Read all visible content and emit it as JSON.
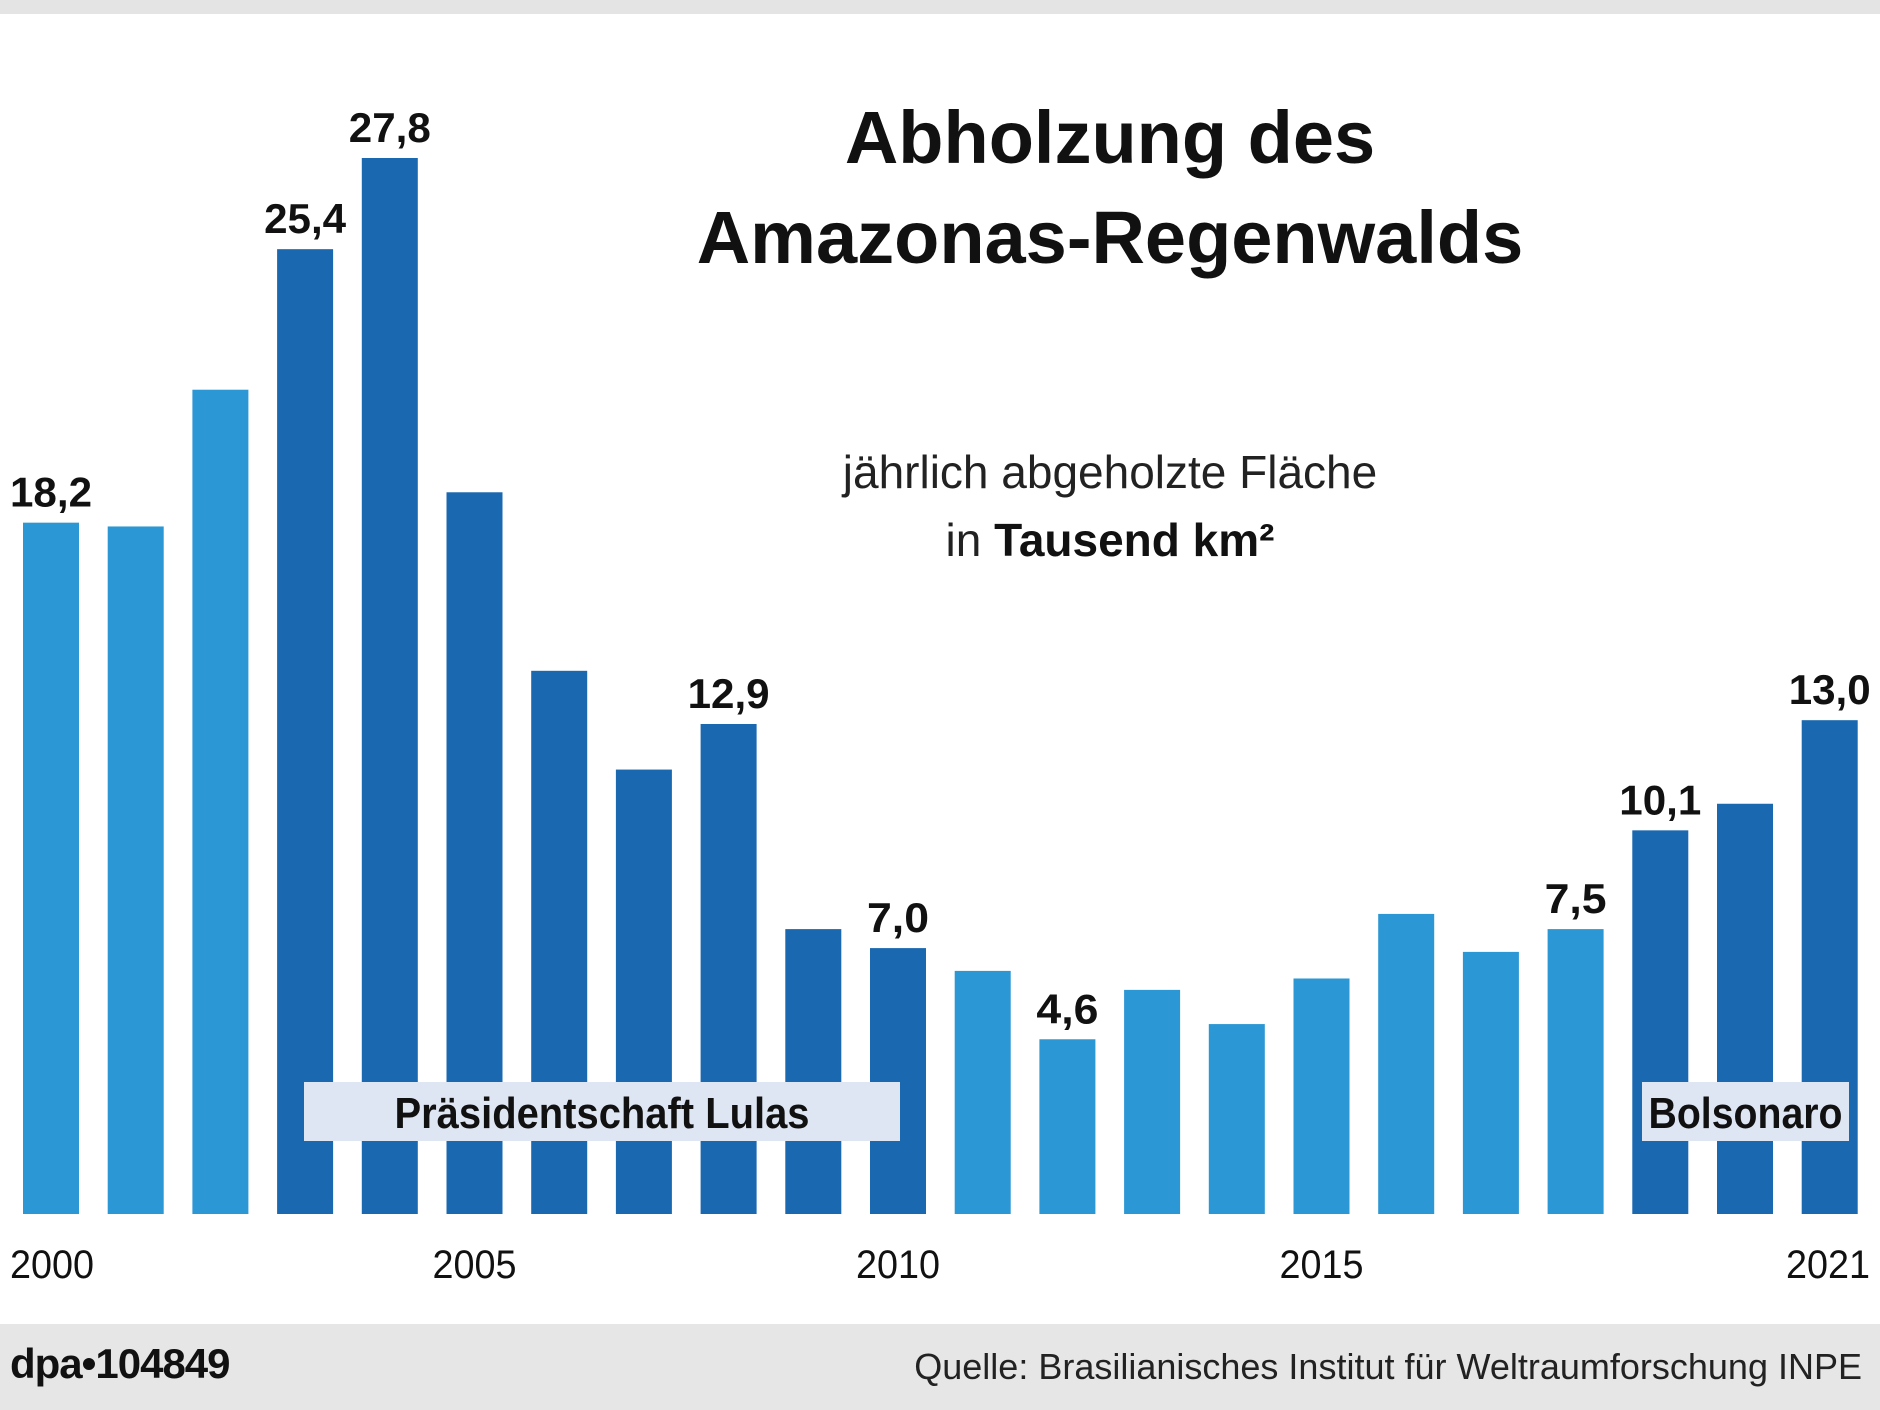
{
  "title_line1": "Abholzung des",
  "title_line2": "Amazonas-Regenwalds",
  "subtitle_line1": "jährlich abgeholzte Fläche",
  "subtitle_prefix": "in",
  "subtitle_unit": "Tausend km²",
  "credit": "dpa•104849",
  "source": "Quelle: Brasilianisches Institut für Weltraumforschung INPE",
  "colors": {
    "default_bar": "#2b97d4",
    "highlight_bar": "#1a68b0",
    "band": "#dfe6f3",
    "footer": "#e6e6e6"
  },
  "chart_data": {
    "type": "bar",
    "title": "Abholzung des Amazonas-Regenwalds",
    "ylabel": "jährlich abgeholzte Fläche in Tausend km²",
    "xlabel": "",
    "ylim": [
      0,
      28
    ],
    "grid": false,
    "categories": [
      "2000",
      "2001",
      "2002",
      "2003",
      "2004",
      "2005",
      "2006",
      "2007",
      "2008",
      "2009",
      "2010",
      "2011",
      "2012",
      "2013",
      "2014",
      "2015",
      "2016",
      "2017",
      "2018",
      "2019",
      "2020",
      "2021"
    ],
    "values": [
      18.2,
      18.1,
      21.7,
      25.4,
      27.8,
      19.0,
      14.3,
      11.7,
      12.9,
      7.5,
      7.0,
      6.4,
      4.6,
      5.9,
      5.0,
      6.2,
      7.9,
      6.9,
      7.5,
      10.1,
      10.8,
      13.0
    ],
    "data_labels": {
      "2000": "18,2",
      "2003": "25,4",
      "2004": "27,8",
      "2008": "12,9",
      "2010": "7,0",
      "2012": "4,6",
      "2018": "7,5",
      "2019": "10,1",
      "2021": "13,0"
    },
    "x_tick_labels": [
      "2000",
      "2005",
      "2010",
      "2015",
      "2021"
    ],
    "highlight_periods": [
      {
        "label": "Präsidentschaft Lulas",
        "from": "2003",
        "to": "2010"
      },
      {
        "label": "Bolsonaro",
        "from": "2019",
        "to": "2021"
      }
    ]
  }
}
